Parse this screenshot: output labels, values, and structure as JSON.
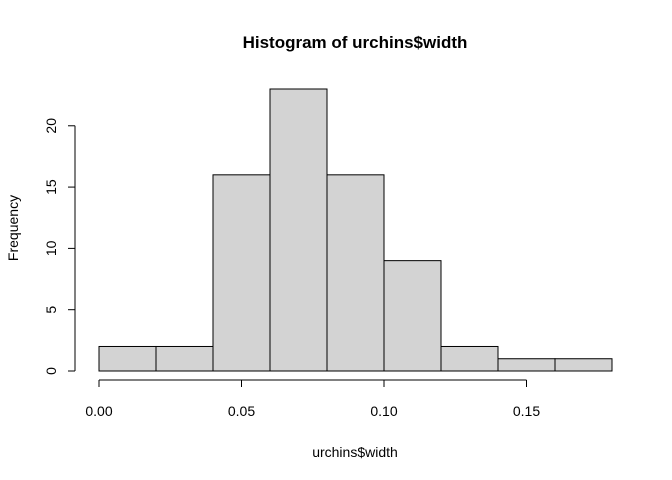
{
  "chart_data": {
    "type": "bar",
    "title": "Histogram of urchins$width",
    "xlabel": "urchins$width",
    "ylabel": "Frequency",
    "bin_edges": [
      0.0,
      0.02,
      0.04,
      0.06,
      0.08,
      0.1,
      0.12,
      0.14,
      0.16,
      0.18
    ],
    "values": [
      2,
      2,
      16,
      23,
      16,
      9,
      2,
      1,
      1
    ],
    "x_ticks": [
      0.0,
      0.05,
      0.1,
      0.15
    ],
    "x_tick_labels": [
      "0.00",
      "0.05",
      "0.10",
      "0.15"
    ],
    "y_ticks": [
      0,
      5,
      10,
      15,
      20
    ],
    "y_tick_labels": [
      "0",
      "5",
      "10",
      "15",
      "20"
    ],
    "xlim": [
      0.0,
      0.18
    ],
    "ylim": [
      0,
      23
    ],
    "bar_color": "#d3d3d3",
    "bar_edge_color": "#000000",
    "grid": false,
    "legend": "none"
  }
}
